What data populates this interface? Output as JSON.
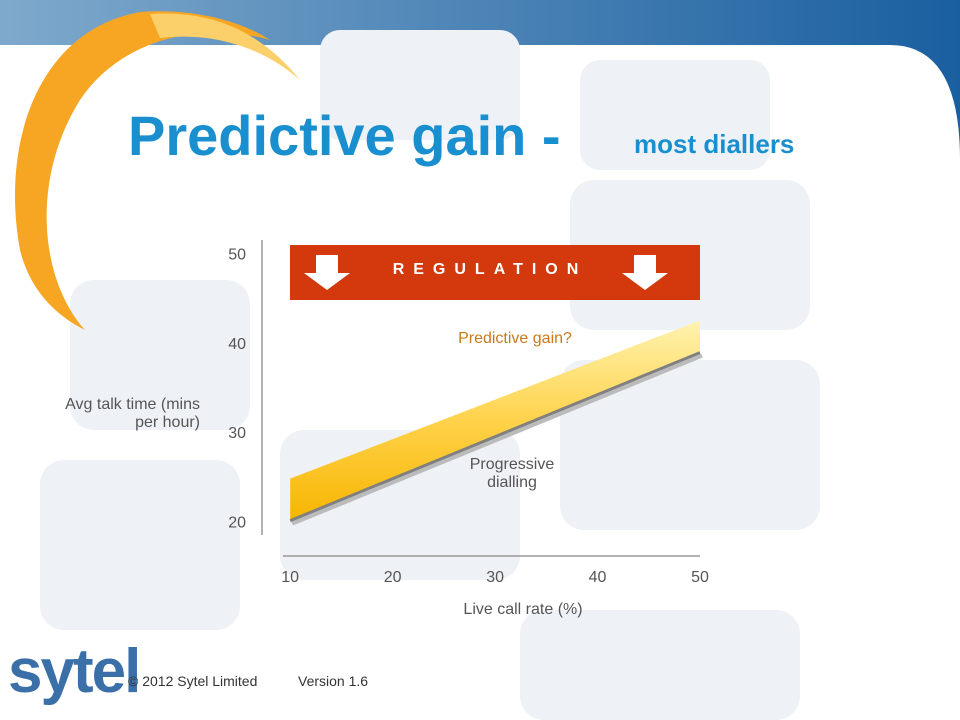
{
  "chart_data": {
    "type": "line",
    "title": "Predictive gain -",
    "subtitle": "most diallers",
    "banner": "REGULATION",
    "x_label": "Live call rate (%)",
    "y_label": "Avg talk time (mins per hour)",
    "x": [
      10,
      50
    ],
    "series": [
      {
        "name": "Progressive dialling",
        "color": "#808080",
        "values": [
          20.3,
          39.1
        ]
      },
      {
        "name": "Predictive gain?",
        "color": "#f7b500",
        "values": [
          25,
          42.7
        ]
      }
    ],
    "xlim": [
      9.3,
      50
    ],
    "xticks": [
      10,
      20,
      30,
      40,
      50
    ],
    "ylim": [
      18.7,
      51.7
    ],
    "yticks": [
      20,
      30,
      40,
      50
    ],
    "grid": false
  },
  "footer": {
    "logo": "sytel",
    "copyright": "© 2012 Sytel Limited",
    "version": "Version 1.6"
  }
}
